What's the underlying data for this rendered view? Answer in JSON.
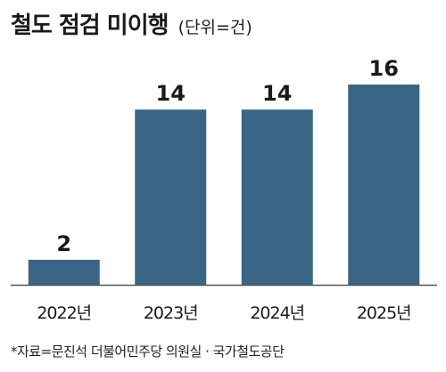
{
  "title": "철도 점검 미이행",
  "unit": "(단위=건)",
  "source": "*자료=문진석 더불어민주당 의원실 · 국가철도공단",
  "colors": {
    "bar": "#3b6585",
    "axis": "#555555",
    "text": "#1a1a1a"
  },
  "chart_data": {
    "type": "bar",
    "categories": [
      "2022년",
      "2023년",
      "2024년",
      "2025년"
    ],
    "values": [
      2,
      14,
      14,
      16
    ],
    "data_labels": [
      "2",
      "14",
      "14",
      "16"
    ],
    "title": "철도 점검 미이행",
    "xlabel": "",
    "ylabel": "",
    "ylim": [
      0,
      16
    ],
    "grid": false,
    "legend": "none"
  }
}
